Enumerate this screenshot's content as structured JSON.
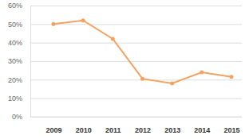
{
  "chart_data": {
    "type": "line",
    "categories": [
      "2009",
      "2010",
      "2011",
      "2012",
      "2013",
      "2014",
      "2015"
    ],
    "values": [
      50,
      52,
      42,
      20.5,
      18,
      24,
      21.5
    ],
    "color": "#f4a261",
    "marker": "circle",
    "line_style": "solid",
    "ylim": [
      0,
      60
    ],
    "yticks": [
      {
        "value": 0,
        "label": "0%"
      },
      {
        "value": 10,
        "label": "10%"
      },
      {
        "value": 20,
        "label": "20%"
      },
      {
        "value": 30,
        "label": "30%"
      },
      {
        "value": 40,
        "label": "40%"
      },
      {
        "value": 50,
        "label": "50%"
      },
      {
        "value": 60,
        "label": "60%"
      }
    ],
    "grid": true
  }
}
